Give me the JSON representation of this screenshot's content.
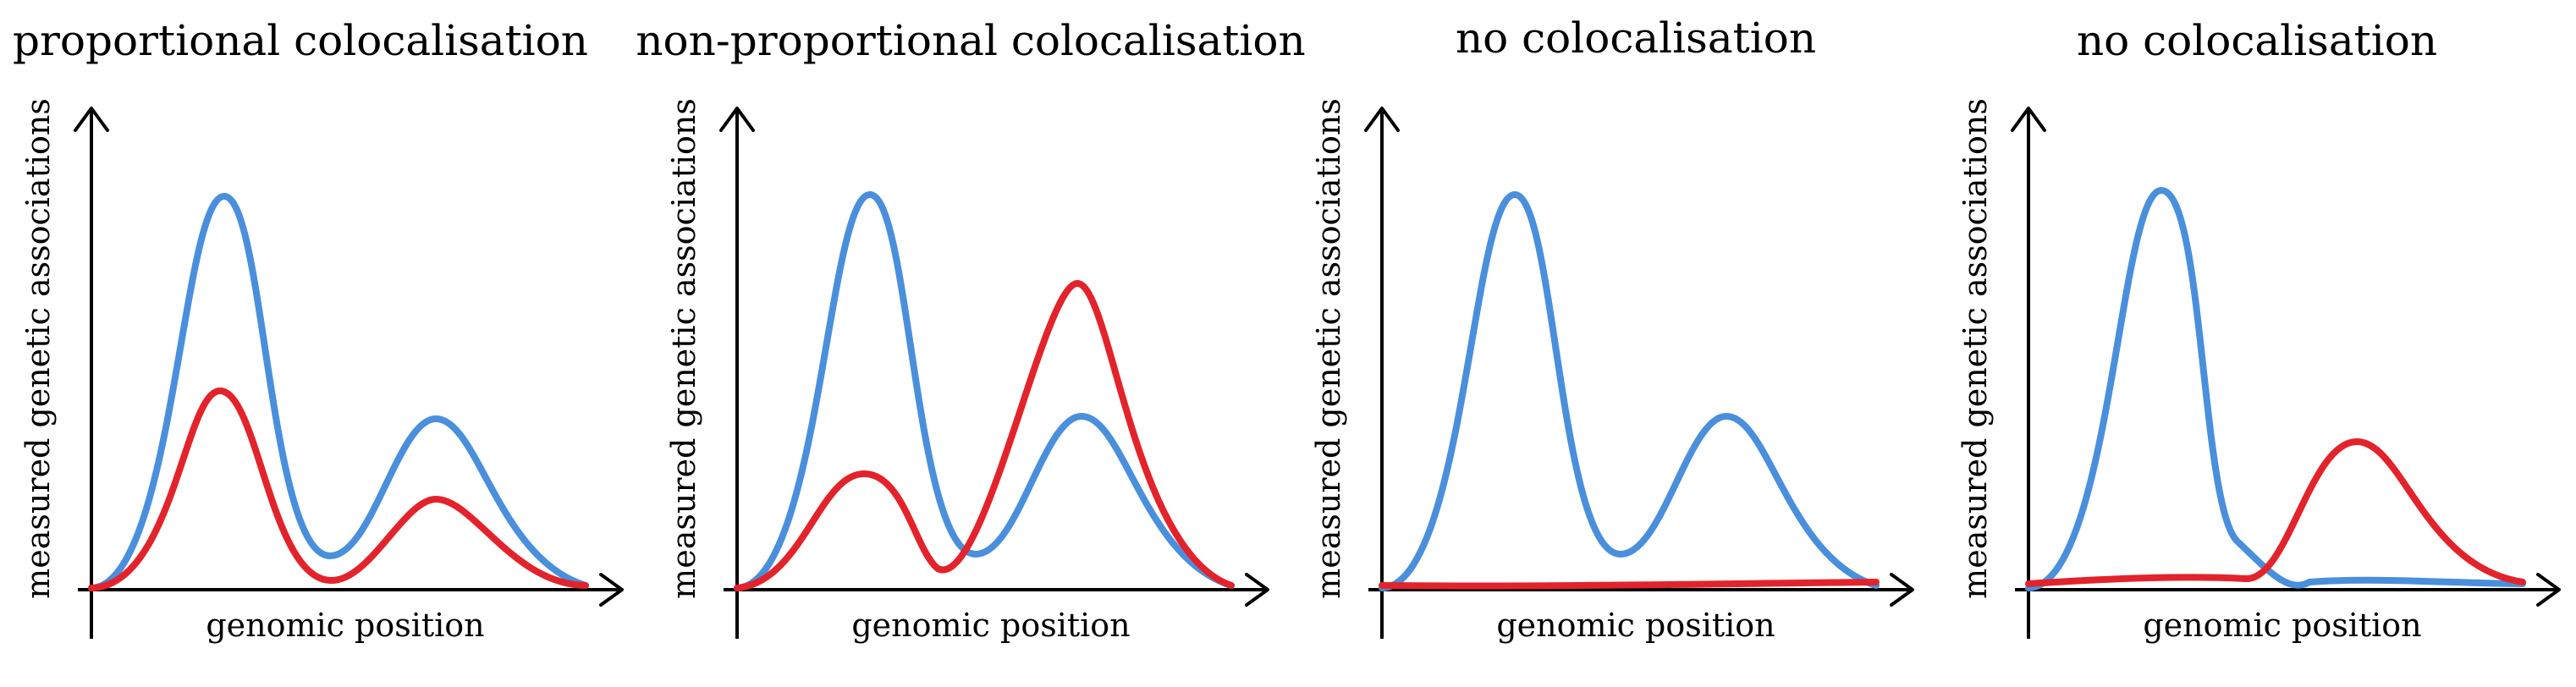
{
  "colors": {
    "blue": "#4a8fdc",
    "red": "#e3232b",
    "axis": "#000000"
  },
  "panels": [
    {
      "title": "proportional colocalisation",
      "xlabel": "genomic position",
      "ylabel": "measured genetic associations"
    },
    {
      "title": "non-proportional colocalisation",
      "xlabel": "genomic position",
      "ylabel": "measured genetic associations"
    },
    {
      "title": "no colocalisation",
      "xlabel": "genomic position",
      "ylabel": "measured genetic associations"
    },
    {
      "title": "no colocalisation",
      "xlabel": "genomic position",
      "ylabel": "measured genetic associations"
    }
  ]
}
